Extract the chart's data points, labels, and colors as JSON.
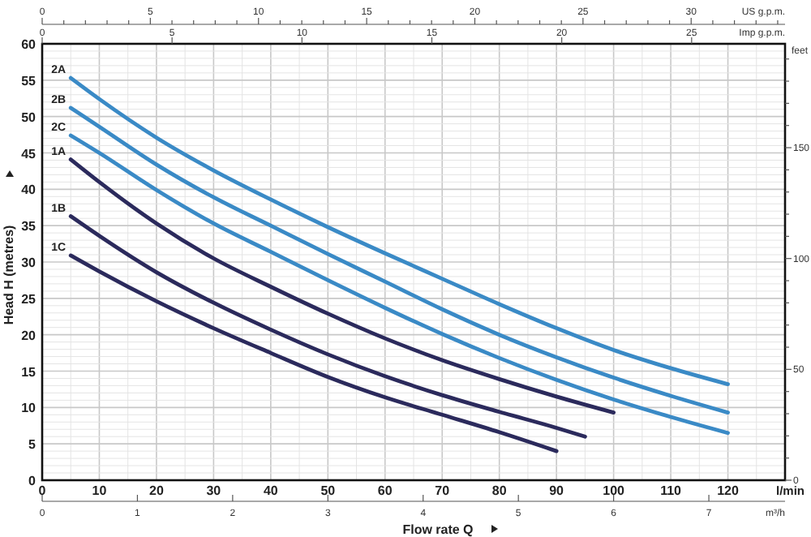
{
  "chart_data": {
    "type": "line",
    "xlabel": "Flow rate Q",
    "ylabel": "Head H (metres)",
    "y2label": "feet",
    "x2label": "US g.p.m.",
    "annotations": [
      "l/min",
      "Imp g.p.m.",
      "0",
      "5",
      "10",
      "15",
      "20",
      "25",
      "m³/h",
      "0",
      "1",
      "2",
      "3",
      "4",
      "5",
      "6",
      "7"
    ],
    "xlim": [
      0,
      130
    ],
    "xticks": [
      0,
      {
        "value": 5,
        "label": null
      },
      10,
      {
        "value": 15,
        "label": null
      },
      20,
      {
        "value": 25,
        "label": null
      },
      30,
      {
        "value": 35,
        "label": null
      },
      40,
      {
        "value": 45,
        "label": null
      },
      50,
      {
        "value": 55,
        "label": null
      },
      60,
      {
        "value": 65,
        "label": null
      },
      70,
      {
        "value": 75,
        "label": null
      },
      80,
      {
        "value": 85,
        "label": null
      },
      90,
      {
        "value": 95,
        "label": null
      },
      100,
      {
        "value": 105,
        "label": null
      },
      110,
      {
        "value": 115,
        "label": null
      },
      120,
      {
        "value": 125,
        "label": null
      }
    ],
    "ylim": [
      0,
      60
    ],
    "yticks": [
      0,
      {
        "value": 1,
        "label": null
      },
      {
        "value": 2,
        "label": null
      },
      {
        "value": 3,
        "label": null
      },
      {
        "value": 4,
        "label": null
      },
      5,
      {
        "value": 6,
        "label": null
      },
      {
        "value": 7,
        "label": null
      },
      {
        "value": 8,
        "label": null
      },
      {
        "value": 9,
        "label": null
      },
      10,
      {
        "value": 11,
        "label": null
      },
      {
        "value": 12,
        "label": null
      },
      {
        "value": 13,
        "label": null
      },
      {
        "value": 14,
        "label": null
      },
      15,
      {
        "value": 16,
        "label": null
      },
      {
        "value": 17,
        "label": null
      },
      {
        "value": 18,
        "label": null
      },
      {
        "value": 19,
        "label": null
      },
      20,
      {
        "value": 21,
        "label": null
      },
      {
        "value": 22,
        "label": null
      },
      {
        "value": 23,
        "label": null
      },
      {
        "value": 24,
        "label": null
      },
      25,
      {
        "value": 26,
        "label": null
      },
      {
        "value": 27,
        "label": null
      },
      {
        "value": 28,
        "label": null
      },
      {
        "value": 29,
        "label": null
      },
      30,
      {
        "value": 31,
        "label": null
      },
      {
        "value": 32,
        "label": null
      },
      {
        "value": 33,
        "label": null
      },
      {
        "value": 34,
        "label": null
      },
      35,
      {
        "value": 36,
        "label": null
      },
      {
        "value": 37,
        "label": null
      },
      {
        "value": 38,
        "label": null
      },
      {
        "value": 39,
        "label": null
      },
      40,
      {
        "value": 41,
        "label": null
      },
      {
        "value": 42,
        "label": null
      },
      {
        "value": 43,
        "label": null
      },
      {
        "value": 44,
        "label": null
      },
      45,
      {
        "value": 46,
        "label": null
      },
      {
        "value": 47,
        "label": null
      },
      {
        "value": 48,
        "label": null
      },
      {
        "value": 49,
        "label": null
      },
      50,
      {
        "value": 51,
        "label": null
      },
      {
        "value": 52,
        "label": null
      },
      {
        "value": 53,
        "label": null
      },
      {
        "value": 54,
        "label": null
      },
      55,
      {
        "value": 56,
        "label": null
      },
      {
        "value": 57,
        "label": null
      },
      {
        "value": 58,
        "label": null
      },
      {
        "value": 59,
        "label": null
      },
      60
    ],
    "y2lim": [
      0,
      196.85
    ],
    "y2ticks": [
      0,
      {
        "value": 10,
        "label": null
      },
      {
        "value": 20,
        "label": null
      },
      {
        "value": 30,
        "label": null
      },
      {
        "value": 40,
        "label": null
      },
      50,
      {
        "value": 60,
        "label": null
      },
      {
        "value": 70,
        "label": null
      },
      {
        "value": 80,
        "label": null
      },
      {
        "value": 90,
        "label": null
      },
      100,
      {
        "value": 110,
        "label": null
      },
      {
        "value": 120,
        "label": null
      },
      {
        "value": 130,
        "label": null
      },
      {
        "value": 140,
        "label": null
      },
      150,
      {
        "value": 160,
        "label": null
      },
      {
        "value": 170,
        "label": null
      },
      {
        "value": 180,
        "label": null
      },
      {
        "value": 190,
        "label": null
      }
    ],
    "x2lim": [
      0,
      34.34
    ],
    "x2ticks": [
      0,
      {
        "value": 1,
        "label": null
      },
      {
        "value": 2,
        "label": null
      },
      {
        "value": 3,
        "label": null
      },
      {
        "value": 4,
        "label": null
      },
      5,
      {
        "value": 6,
        "label": null
      },
      {
        "value": 7,
        "label": null
      },
      {
        "value": 8,
        "label": null
      },
      {
        "value": 9,
        "label": null
      },
      10,
      {
        "value": 11,
        "label": null
      },
      {
        "value": 12,
        "label": null
      },
      {
        "value": 13,
        "label": null
      },
      {
        "value": 14,
        "label": null
      },
      15,
      {
        "value": 16,
        "label": null
      },
      {
        "value": 17,
        "label": null
      },
      {
        "value": 18,
        "label": null
      },
      {
        "value": 19,
        "label": null
      },
      20,
      {
        "value": 21,
        "label": null
      },
      {
        "value": 22,
        "label": null
      },
      {
        "value": 23,
        "label": null
      },
      {
        "value": 24,
        "label": null
      },
      25,
      {
        "value": 26,
        "label": null
      },
      {
        "value": 27,
        "label": null
      },
      {
        "value": 28,
        "label": null
      },
      {
        "value": 29,
        "label": null
      },
      30,
      {
        "value": 31,
        "label": null
      },
      {
        "value": 32,
        "label": null
      },
      {
        "value": 33,
        "label": null
      },
      {
        "value": 34,
        "label": null
      }
    ],
    "grid": true,
    "marker": "none",
    "line_style": "solid",
    "series": [
      {
        "name": "2A",
        "color": "#3a8ac6",
        "x": [
          5,
          10,
          20,
          30,
          40,
          50,
          60,
          70,
          80,
          90,
          100,
          110,
          120
        ],
        "values": [
          55.3,
          52.4,
          47.1,
          42.6,
          38.6,
          34.8,
          31.2,
          27.7,
          24.2,
          20.9,
          17.9,
          15.4,
          13.2
        ]
      },
      {
        "name": "2B",
        "color": "#3a8ac6",
        "x": [
          5,
          10,
          20,
          30,
          40,
          50,
          60,
          70,
          80,
          90,
          100,
          110,
          120
        ],
        "values": [
          51.2,
          48.6,
          43.4,
          38.9,
          35,
          31.1,
          27.3,
          23.5,
          20,
          16.9,
          14.1,
          11.6,
          9.3
        ]
      },
      {
        "name": "2C",
        "color": "#3a8ac6",
        "x": [
          5,
          10,
          20,
          30,
          40,
          50,
          60,
          70,
          80,
          90,
          100,
          110,
          120
        ],
        "values": [
          47.4,
          45,
          39.9,
          35.3,
          31.4,
          27.5,
          23.7,
          20.1,
          16.8,
          13.8,
          11.1,
          8.7,
          6.5
        ]
      },
      {
        "name": "1A",
        "color": "#2b2a5c",
        "x": [
          5,
          10,
          20,
          30,
          40,
          50,
          60,
          70,
          80,
          90,
          100
        ],
        "values": [
          44.1,
          41,
          35.3,
          30.5,
          26.6,
          22.9,
          19.5,
          16.5,
          13.9,
          11.5,
          9.3
        ]
      },
      {
        "name": "1B",
        "color": "#2b2a5c",
        "x": [
          5,
          10,
          20,
          30,
          40,
          50,
          60,
          70,
          80,
          90,
          95
        ],
        "values": [
          36.3,
          33.6,
          28.6,
          24.4,
          20.7,
          17.3,
          14.3,
          11.7,
          9.4,
          7.2,
          6
        ]
      },
      {
        "name": "1C",
        "color": "#2b2a5c",
        "x": [
          5,
          10,
          20,
          30,
          40,
          50,
          60,
          70,
          80,
          90
        ],
        "values": [
          30.9,
          28.7,
          24.6,
          20.9,
          17.5,
          14.2,
          11.4,
          9,
          6.6,
          4
        ]
      }
    ]
  }
}
